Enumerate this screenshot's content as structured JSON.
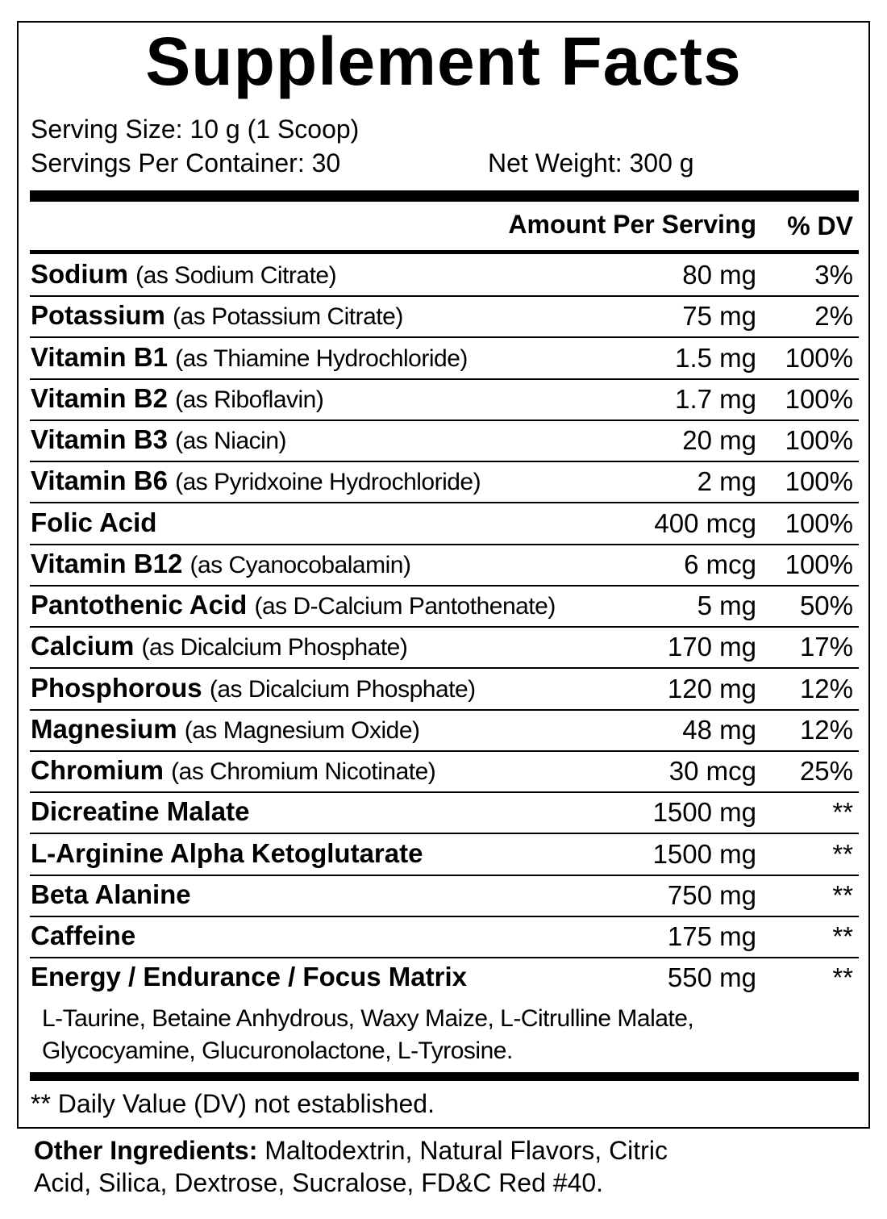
{
  "title": "Supplement Facts",
  "serving_size": "Serving Size: 10 g (1 Scoop)",
  "servings_per_container": "Servings Per Container: 30",
  "net_weight": "Net Weight: 300 g",
  "header": {
    "amount": "Amount Per Serving",
    "dv": "% DV"
  },
  "rows": [
    {
      "name": "Sodium",
      "source": "(as Sodium Citrate)",
      "amount": "80 mg",
      "dv": "3%"
    },
    {
      "name": "Potassium",
      "source": "(as Potassium Citrate)",
      "amount": "75 mg",
      "dv": "2%"
    },
    {
      "name": "Vitamin B1",
      "source": "(as Thiamine Hydrochloride)",
      "amount": "1.5 mg",
      "dv": "100%"
    },
    {
      "name": "Vitamin B2",
      "source": "(as Riboflavin)",
      "amount": "1.7 mg",
      "dv": "100%"
    },
    {
      "name": "Vitamin B3",
      "source": "(as Niacin)",
      "amount": "20 mg",
      "dv": "100%"
    },
    {
      "name": "Vitamin B6",
      "source": "(as Pyridxoine Hydrochloride)",
      "amount": "2 mg",
      "dv": "100%"
    },
    {
      "name": "Folic Acid",
      "amount": "400 mcg",
      "dv": "100%"
    },
    {
      "name": "Vitamin B12",
      "source": "(as Cyanocobalamin)",
      "amount": "6 mcg",
      "dv": "100%"
    },
    {
      "name": "Pantothenic Acid",
      "source": "(as D-Calcium Pantothenate)",
      "amount": "5 mg",
      "dv": "50%"
    },
    {
      "name": "Calcium",
      "source": "(as Dicalcium Phosphate)",
      "amount": "170 mg",
      "dv": "17%"
    },
    {
      "name": "Phosphorous",
      "source": "(as Dicalcium Phosphate)",
      "amount": "120 mg",
      "dv": "12%"
    },
    {
      "name": "Magnesium",
      "source": "(as Magnesium Oxide)",
      "amount": "48 mg",
      "dv": "12%"
    },
    {
      "name": "Chromium",
      "source": "(as Chromium Nicotinate)",
      "amount": "30 mcg",
      "dv": "25%"
    },
    {
      "name": "Dicreatine Malate",
      "amount": "1500 mg",
      "dv": "**"
    },
    {
      "name": "L-Arginine Alpha Ketoglutarate",
      "amount": "1500 mg",
      "dv": "**"
    },
    {
      "name": "Beta Alanine",
      "amount": "750 mg",
      "dv": "**"
    },
    {
      "name": "Caffeine",
      "amount": "175 mg",
      "dv": "**"
    },
    {
      "name": "Energy / Endurance / Focus Matrix",
      "amount": "550 mg",
      "dv": "**"
    }
  ],
  "matrix_ingredients": [
    "L-Taurine, Betaine Anhydrous, Waxy Maize, L-Citrulline Malate,",
    "Glycocyamine, Glucuronolactone, L-Tyrosine."
  ],
  "footnote": "** Daily Value (DV) not established.",
  "other_ingredients": {
    "label": "Other Ingredients:",
    "text": [
      "Maltodextrin, Natural Flavors, Citric",
      "Acid, Silica, Dextrose, Sucralose, FD&C Red #40."
    ]
  }
}
